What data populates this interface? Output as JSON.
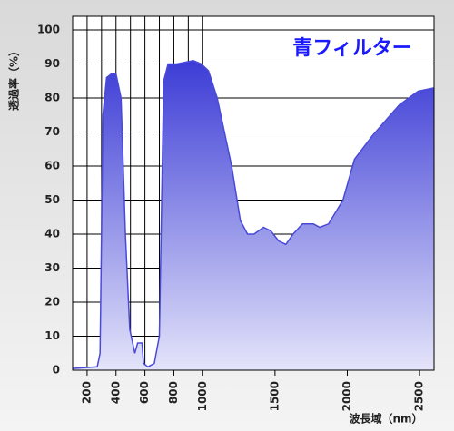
{
  "chart_data": {
    "type": "area",
    "title": "青フィルター",
    "y_label": "透過率（%）",
    "x_label": "波長域（nm）",
    "color": "#4a4ad8",
    "x": [
      100,
      270,
      290,
      310,
      335,
      365,
      400,
      435,
      465,
      495,
      530,
      550,
      580,
      590,
      620,
      665,
      700,
      730,
      760,
      820,
      935,
      990,
      1040,
      1100,
      1200,
      1260,
      1310,
      1355,
      1420,
      1470,
      1525,
      1575,
      1625,
      1690,
      1765,
      1810,
      1870,
      1970,
      2050,
      2175,
      2360,
      2490,
      2600
    ],
    "values": [
      0.5,
      1,
      5,
      75,
      86,
      87,
      87,
      80,
      40,
      12,
      5,
      8,
      8,
      2,
      1,
      2,
      10,
      85,
      90,
      90,
      91,
      90,
      88,
      80,
      60,
      44,
      40,
      40,
      42,
      41,
      38,
      37,
      40,
      43,
      43,
      42,
      43,
      50,
      62,
      69,
      78,
      82,
      83
    ],
    "xlim": [
      100,
      2600
    ],
    "ylim": [
      0,
      104
    ],
    "xticks": [
      200,
      400,
      600,
      800,
      1000,
      1500,
      2000,
      2500
    ],
    "x_gridlines": [
      200,
      300,
      400,
      500,
      600,
      700,
      800,
      900,
      1000
    ],
    "yticks": [
      0,
      10,
      20,
      30,
      40,
      50,
      60,
      70,
      80,
      90,
      100
    ],
    "grid": true
  }
}
